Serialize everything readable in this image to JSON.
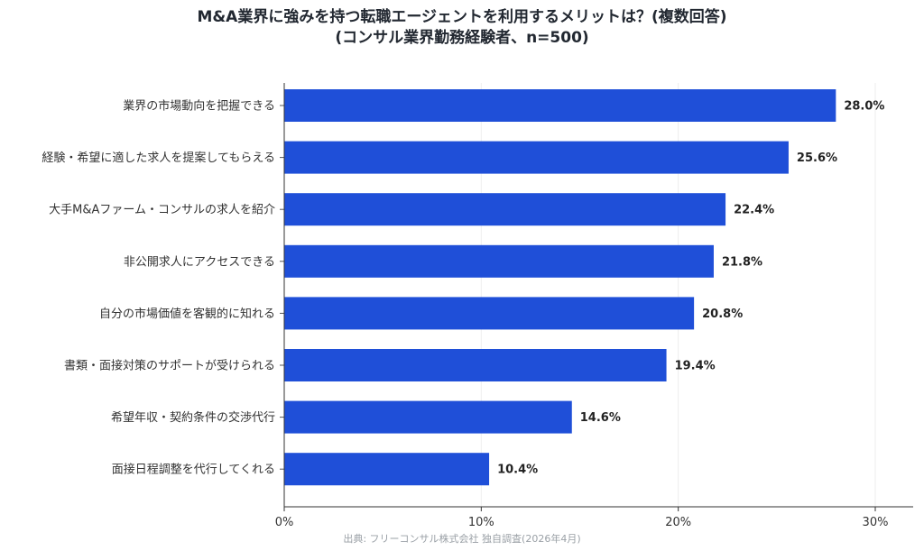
{
  "chart_data": {
    "type": "bar",
    "orientation": "horizontal",
    "title": "M&A業界に強みを持つ転職エージェントを利用するメリットは？(複数回答)",
    "subtitle": "(コンサル業界勤務経験者、n=500)",
    "categories": [
      "業界の市場動向を把握できる",
      "経験・希望に適した求人を提案してもらえる",
      "大手M&Aファーム・コンサルの求人を紹介",
      "非公開求人にアクセスできる",
      "自分の市場価値を客観的に知れる",
      "書類・面接対策のサポートが受けられる",
      "希望年収・契約条件の交渉代行",
      "面接日程調整を代行してくれる"
    ],
    "values": [
      28.0,
      25.6,
      22.4,
      21.8,
      20.8,
      19.4,
      14.6,
      10.4
    ],
    "value_labels": [
      "28.0%",
      "25.6%",
      "22.4%",
      "21.8%",
      "20.8%",
      "19.4%",
      "14.6%",
      "10.4%"
    ],
    "xlim": [
      0,
      30
    ],
    "xticks": [
      0,
      10,
      20,
      30
    ],
    "xtick_labels": [
      "0%",
      "10%",
      "20%",
      "30%"
    ],
    "xlabel": "",
    "ylabel": "",
    "grid": true,
    "bar_color": "#1f4fd8",
    "source": "出典: フリーコンサル株式会社 独自調査(2026年4月)"
  }
}
